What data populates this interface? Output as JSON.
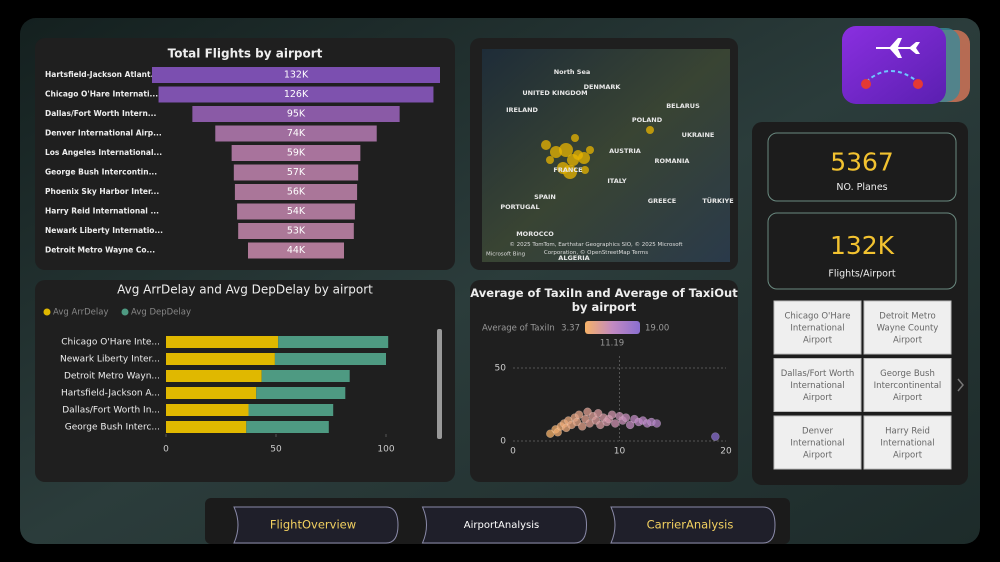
{
  "chart_data": [
    {
      "type": "funnel",
      "title": "Total Flights by airport",
      "categories": [
        "Hartsfield-Jackson Atlant...",
        "Chicago O'Hare Internati...",
        "Dallas/Fort Worth Intern...",
        "Denver International Airp...",
        "Los Angeles International...",
        "George Bush Intercontin...",
        "Phoenix Sky Harbor Inter...",
        "Harry Reid International ...",
        "Newark Liberty Internatio...",
        "Detroit Metro Wayne Co..."
      ],
      "values": [
        132000,
        126000,
        95000,
        74000,
        59000,
        57000,
        56000,
        54000,
        53000,
        44000
      ],
      "value_labels": [
        "132K",
        "126K",
        "95K",
        "74K",
        "59K",
        "57K",
        "56K",
        "54K",
        "53K",
        "44K"
      ],
      "colors": [
        "#7b4fb0",
        "#7e52ae",
        "#8a5aa6",
        "#a06e9e",
        "#a8739c",
        "#a9759a",
        "#aa7699",
        "#ab7799",
        "#ac7898",
        "#b07a98"
      ]
    },
    {
      "type": "stacked_bar_h",
      "title": "Avg ArrDelay and Avg DepDelay by airport",
      "categories": [
        "Chicago O'Hare Inte...",
        "Newark Liberty Inter...",
        "Detroit Metro Wayn...",
        "Hartsfield-Jackson A...",
        "Dallas/Fort Worth In...",
        "George Bush Interc..."
      ],
      "series": [
        {
          "name": "Avg ArrDelay",
          "color": "#e0b800",
          "values": [
            51,
            49.5,
            43.5,
            41,
            37.5,
            36.5
          ]
        },
        {
          "name": "Avg DepDelay",
          "color": "#4e9a82",
          "values": [
            50,
            50.5,
            40,
            40.5,
            38.5,
            37.5
          ]
        }
      ],
      "xlim": [
        0,
        120
      ],
      "xticks": [
        0,
        50,
        100
      ]
    },
    {
      "type": "scatter",
      "title": "Average of TaxiIn and Average of TaxiOut by airport",
      "x": [
        3.5,
        4,
        4.2,
        4.5,
        4.8,
        5,
        5.2,
        5.5,
        5.8,
        6,
        6.2,
        6.5,
        6.8,
        7,
        7.2,
        7.5,
        7.8,
        8,
        8.2,
        8.5,
        8.8,
        9,
        9.3,
        9.6,
        10,
        10.3,
        10.6,
        11,
        11.4,
        11.8,
        12.2,
        12.6,
        13,
        13.5,
        19
      ],
      "y": [
        5,
        8,
        6,
        10,
        12,
        9,
        14,
        11,
        16,
        13,
        18,
        10,
        15,
        20,
        12,
        17,
        14,
        19,
        11,
        16,
        13,
        15,
        18,
        12,
        17,
        14,
        16,
        11,
        15,
        13,
        14,
        12,
        13,
        12,
        3
      ],
      "xlim": [
        0,
        20
      ],
      "ylim": [
        0,
        60
      ],
      "xticks": [
        0,
        10,
        20
      ],
      "yticks": [
        0,
        50
      ],
      "grid": true,
      "color_scale": {
        "title": "Average of TaxiIn",
        "min": 3.37,
        "mid": 11.19,
        "max": {
          "value": 19,
          "label": "19.00"
        },
        "colors": [
          "#f7b267",
          "#c28ac2",
          "#8a6fd0"
        ]
      }
    }
  ],
  "map": {
    "labels": [
      "North Sea",
      "DENMARK",
      "UNITED KINGDOM",
      "IRELAND",
      "BELARUS",
      "POLAND",
      "UKRAINE",
      "AUSTRIA",
      "ROMANIA",
      "FRANCE",
      "ITALY",
      "SPAIN",
      "PORTUGAL",
      "GREECE",
      "TÜRKIYE",
      "MOROCCO",
      "ALGERIA"
    ],
    "attribution": "© 2025 TomTom, Earthstar Geographics SIO, © 2025 Microsoft Corporation, © OpenStreetMap Terms",
    "brand": "Microsoft Bing"
  },
  "kpis": [
    {
      "value": "5367",
      "label": "NO. Planes"
    },
    {
      "value": "132K",
      "label": "Flights/Airport"
    }
  ],
  "airport_slicer": {
    "items": [
      "Chicago O'Hare International Airport",
      "Detroit Metro Wayne County Airport",
      "Dallas/Fort Worth International Airport",
      "George Bush Intercontinental Airport",
      "Denver International Airport",
      "Harry Reid International Airport"
    ]
  },
  "nav": {
    "buttons": [
      "FlightOverview",
      "AirportAnalysis",
      "CarrierAnalysis"
    ]
  }
}
